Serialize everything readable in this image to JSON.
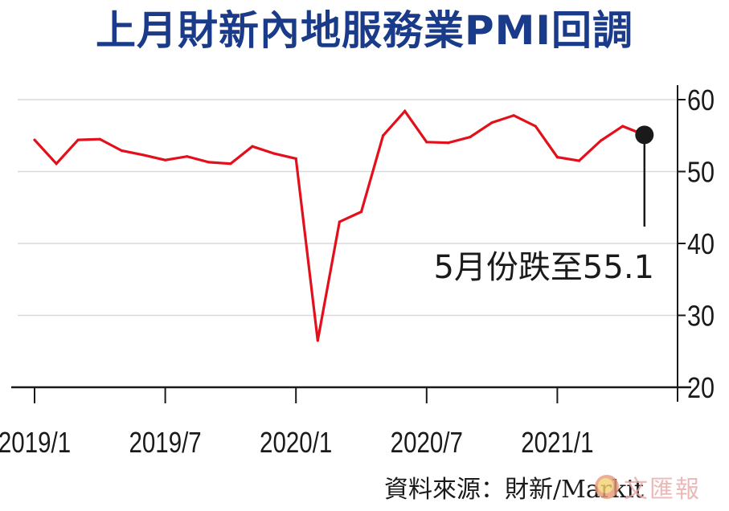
{
  "title": "上月財新內地服務業PMI回調",
  "source": "資料來源：財新/Markit",
  "watermark": "文匯報",
  "colors": {
    "title": "#1a3a8a",
    "line": "#e3101b",
    "grid": "#d9d9d9",
    "axis": "#1a1a1a",
    "marker": "#1a1a1a"
  },
  "chart_data": {
    "type": "line",
    "x": [
      "2019/1",
      "2019/2",
      "2019/3",
      "2019/4",
      "2019/5",
      "2019/6",
      "2019/7",
      "2019/8",
      "2019/9",
      "2019/10",
      "2019/11",
      "2019/12",
      "2020/1",
      "2020/2",
      "2020/3",
      "2020/4",
      "2020/5",
      "2020/6",
      "2020/7",
      "2020/8",
      "2020/9",
      "2020/10",
      "2020/11",
      "2020/12",
      "2021/1",
      "2021/2",
      "2021/3",
      "2021/4",
      "2021/5"
    ],
    "series": [
      {
        "values": [
          54.4,
          51.1,
          54.4,
          54.5,
          52.9,
          52.3,
          51.6,
          52.1,
          51.3,
          51.1,
          53.5,
          52.5,
          51.8,
          26.5,
          43.0,
          44.4,
          55.0,
          58.4,
          54.1,
          54.0,
          54.8,
          56.8,
          57.8,
          56.3,
          52.0,
          51.5,
          54.3,
          56.3,
          55.1
        ]
      }
    ],
    "xticks_labels": [
      "2019/1",
      "2019/7",
      "2020/1",
      "2020/7",
      "2021/1"
    ],
    "yticks": [
      20,
      30,
      40,
      50,
      60
    ],
    "ylim": [
      20,
      60
    ],
    "grid": true,
    "y_axis_side": "right",
    "annotation": {
      "label": "5月份跌至55.1",
      "x": "2021/5",
      "value": 55.1
    }
  }
}
